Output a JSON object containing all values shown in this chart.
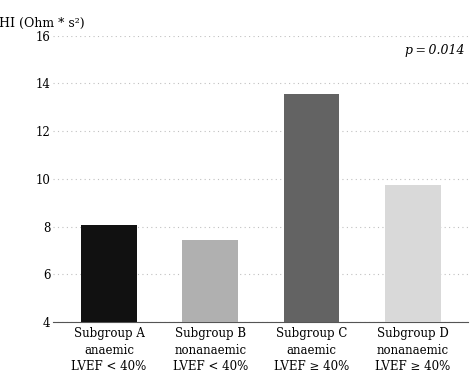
{
  "categories": [
    "Subgroup A\nanaemic\nLVEF < 40%",
    "Subgroup B\nnonanaemic\nLVEF < 40%",
    "Subgroup C\nanaemic\nLVEF ≥ 40%",
    "Subgroup D\nnonanaemic\nLVEF ≥ 40%"
  ],
  "values": [
    8.05,
    7.45,
    13.55,
    9.75
  ],
  "bar_colors": [
    "#111111",
    "#b0b0b0",
    "#636363",
    "#d9d9d9"
  ],
  "bar_width": 0.55,
  "ylabel": "HI (Ohm * s²)",
  "ylim": [
    4,
    16
  ],
  "yticks": [
    4,
    6,
    8,
    10,
    12,
    14,
    16
  ],
  "annotation": "p = 0.014",
  "grid_color": "#c0c0c0",
  "background_color": "#ffffff",
  "tick_fontsize": 8.5,
  "label_fontsize": 9,
  "annotation_fontsize": 9
}
